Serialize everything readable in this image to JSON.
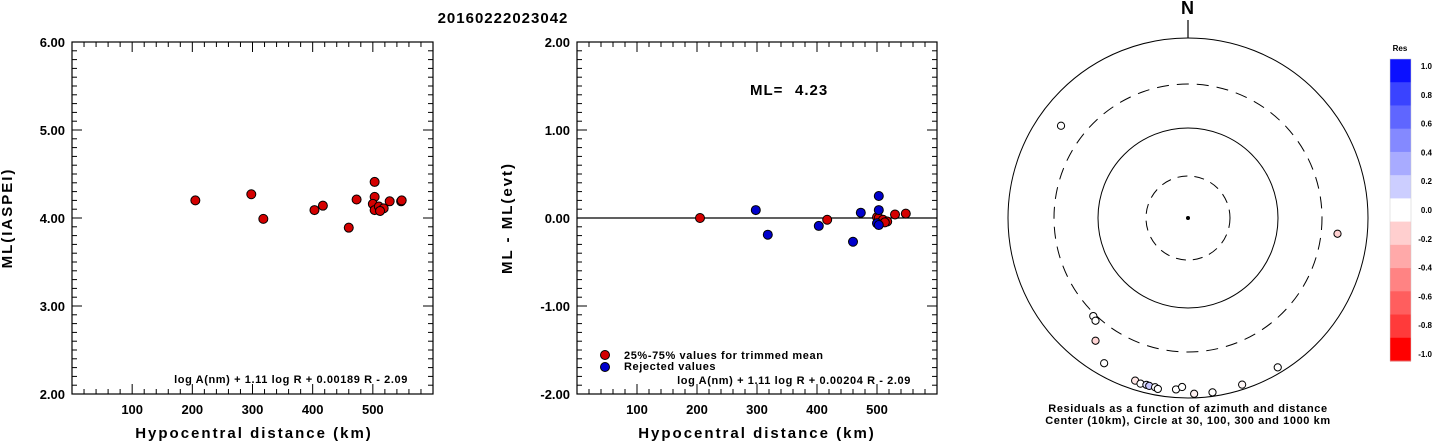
{
  "title": "20160222023042",
  "chart_data": [
    {
      "type": "scatter",
      "xlabel": "Hypocentral distance (km)",
      "ylabel": "ML(IASPEI)",
      "xlim": [
        0,
        600
      ],
      "ylim": [
        2.0,
        6.0
      ],
      "xticks": [
        100,
        200,
        300,
        400,
        500
      ],
      "xtick_labels": [
        "100",
        "200",
        "300",
        "400",
        "500"
      ],
      "yticks": [
        2,
        3,
        4,
        5,
        6
      ],
      "ytick_labels": [
        "2.00",
        "3.00",
        "4.00",
        "5.00",
        "6.00"
      ],
      "formula": "log A(nm) + 1.11 log R + 0.00189 R - 2.09",
      "series": [
        {
          "color": "#d40000",
          "points": [
            [
              205,
              4.2
            ],
            [
              298,
              4.27
            ],
            [
              318,
              3.99
            ],
            [
              403,
              4.09
            ],
            [
              417,
              4.14
            ],
            [
              460,
              3.89
            ],
            [
              473,
              4.21
            ],
            [
              503,
              4.41
            ],
            [
              503,
              4.24
            ],
            [
              500,
              4.16
            ],
            [
              503,
              4.09
            ],
            [
              510,
              4.13
            ],
            [
              518,
              4.11
            ],
            [
              512,
              4.08
            ],
            [
              528,
              4.19
            ],
            [
              547,
              4.19
            ],
            [
              548,
              4.2
            ]
          ]
        }
      ]
    },
    {
      "type": "scatter",
      "xlabel": "Hypocentral distance (km)",
      "ylabel": "ML - ML(evt)",
      "xlim": [
        0,
        600
      ],
      "ylim": [
        -2.0,
        2.0
      ],
      "xticks": [
        100,
        200,
        300,
        400,
        500
      ],
      "xtick_labels": [
        "100",
        "200",
        "300",
        "400",
        "500"
      ],
      "yticks": [
        -2,
        -1,
        0,
        1,
        2
      ],
      "ytick_labels": [
        "-2.00",
        "-1.00",
        "0.00",
        "1.00",
        "2.00"
      ],
      "ml_label": "ML=",
      "ml_value": "4.23",
      "formula": "log A(nm) + 1.11 log R + 0.00204 R - 2.09",
      "zero_line": true,
      "legend": [
        {
          "label": "25%-75% values for trimmed mean",
          "color": "#d40000"
        },
        {
          "label": "Rejected values",
          "color": "#0000cc"
        }
      ],
      "series": [
        {
          "name": "25%-75% values for trimmed mean",
          "color": "#d40000",
          "points": [
            [
              205,
              0.0
            ],
            [
              417,
              -0.02
            ],
            [
              500,
              0.01
            ],
            [
              503,
              0.0
            ],
            [
              510,
              -0.02
            ],
            [
              517,
              -0.04
            ],
            [
              513,
              -0.05
            ],
            [
              530,
              0.04
            ],
            [
              548,
              0.05
            ]
          ]
        },
        {
          "name": "Rejected values",
          "color": "#0000cc",
          "points": [
            [
              298,
              0.09
            ],
            [
              318,
              -0.19
            ],
            [
              403,
              -0.09
            ],
            [
              460,
              -0.27
            ],
            [
              473,
              0.06
            ],
            [
              503,
              0.25
            ],
            [
              503,
              0.09
            ],
            [
              500,
              -0.06
            ],
            [
              503,
              -0.08
            ]
          ]
        }
      ]
    },
    {
      "type": "polar",
      "north_label": "N",
      "caption_line1": "Residuals as a function of azimuth and distance",
      "caption_line2": "Center (10km), Circle at 30, 100, 300 and 1000 km",
      "colorbar_title": "Res",
      "colorbar_ticks": [
        "1.0",
        "0.8",
        "0.6",
        "0.4",
        "0.2",
        "0.0",
        "-0.2",
        "-0.4",
        "-0.6",
        "-0.8",
        "-1.0"
      ],
      "colorbar_colors": [
        "#0b10ff",
        "#3a43ff",
        "#5f66ff",
        "#8489ff",
        "#a8abff",
        "#ccceff",
        "#ffffff",
        "#ffcfcf",
        "#ffa9a9",
        "#ff8383",
        "#ff5e5e",
        "#ff3a3a",
        "#ff0000"
      ],
      "stations": [
        {
          "azimuth": 306,
          "distance_km": 547,
          "residual": 0.0
        },
        {
          "azimuth": 224,
          "distance_km": 319,
          "residual": 0.0
        },
        {
          "azimuth": 222,
          "distance_km": 335,
          "residual": 0.0
        },
        {
          "azimuth": 96,
          "distance_km": 460,
          "residual": -0.18
        },
        {
          "azimuth": 217,
          "distance_km": 502,
          "residual": -0.17
        },
        {
          "azimuth": 210,
          "distance_km": 725,
          "residual": 0.0
        },
        {
          "azimuth": 198,
          "distance_km": 790,
          "residual": -0.1
        },
        {
          "azimuth": 196,
          "distance_km": 818,
          "residual": 0.0
        },
        {
          "azimuth": 194,
          "distance_km": 810,
          "residual": 0.12
        },
        {
          "azimuth": 193,
          "distance_km": 818,
          "residual": 0.22
        },
        {
          "azimuth": 191,
          "distance_km": 820,
          "residual": 0.0
        },
        {
          "azimuth": 190,
          "distance_km": 845,
          "residual": 0.0
        },
        {
          "azimuth": 184,
          "distance_km": 808,
          "residual": 0.0
        },
        {
          "azimuth": 182,
          "distance_km": 752,
          "residual": 0.0
        },
        {
          "azimuth": 178,
          "distance_km": 898,
          "residual": -0.05
        },
        {
          "azimuth": 172,
          "distance_km": 902,
          "residual": 0.0
        },
        {
          "azimuth": 162,
          "distance_km": 882,
          "residual": -0.03
        },
        {
          "azimuth": 149,
          "distance_km": 860,
          "residual": 0.0
        }
      ]
    }
  ]
}
